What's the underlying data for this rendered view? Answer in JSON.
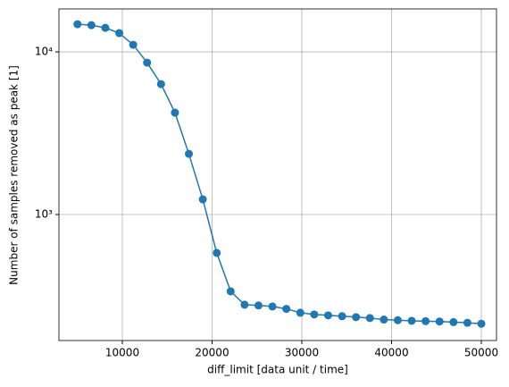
{
  "chart_data": {
    "type": "line",
    "xlabel": "diff_limit [data unit / time]",
    "ylabel": "Number of samples removed as peak [1]",
    "x": [
      5000,
      6551.72,
      8103.45,
      9655.17,
      11206.9,
      12758.62,
      14310.34,
      15862.07,
      17413.79,
      18965.52,
      20517.24,
      22068.97,
      23620.69,
      25172.41,
      26724.14,
      28275.86,
      29827.59,
      31379.31,
      32931.03,
      34482.76,
      36034.48,
      37586.21,
      39137.93,
      40689.66,
      42241.38,
      43793.1,
      45344.83,
      46896.55,
      48448.28,
      50000
    ],
    "series": [
      {
        "color": "#1f77b4",
        "values": [
          14800,
          14600,
          14060,
          13050,
          11060,
          8590,
          6340,
          4230,
          2360,
          1240,
          581,
          337,
          279,
          276,
          272,
          263,
          249,
          243,
          240,
          237,
          234,
          231,
          226,
          224,
          222,
          221,
          220,
          218,
          216,
          213
        ]
      }
    ],
    "xlim": [
      2935,
      51690
    ],
    "ylim": [
      168,
      18370
    ],
    "xticks": [
      10000,
      20000,
      30000,
      40000,
      50000
    ],
    "yticks": [
      {
        "value": 1000,
        "label": "10³"
      },
      {
        "value": 10000,
        "label": "10⁴"
      }
    ],
    "yscale": "log",
    "grid": true
  }
}
